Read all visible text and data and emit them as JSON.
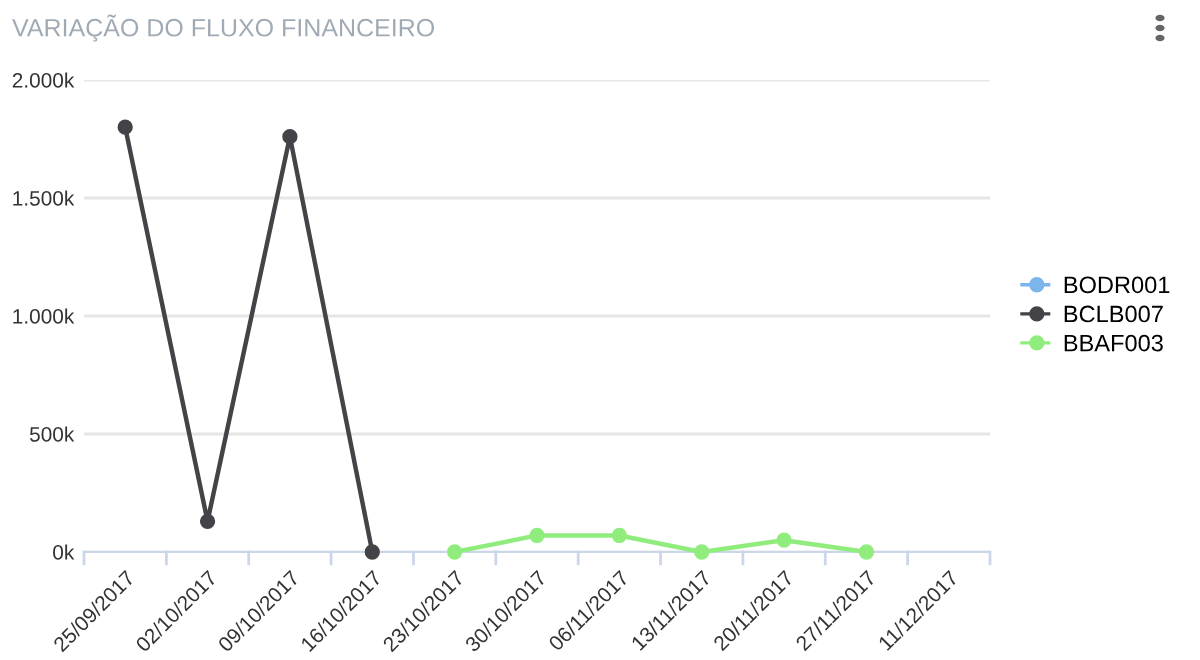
{
  "chart_data": {
    "type": "line",
    "title": "VARIAÇÃO DO FLUXO FINANCEIRO",
    "categories": [
      "25/09/2017",
      "02/10/2017",
      "09/10/2017",
      "16/10/2017",
      "23/10/2017",
      "30/10/2017",
      "06/11/2017",
      "13/11/2017",
      "20/11/2017",
      "27/11/2017",
      "11/12/2017"
    ],
    "series": [
      {
        "name": "BODR001",
        "color": "#7cb5ec",
        "values": [
          null,
          null,
          null,
          null,
          null,
          null,
          null,
          null,
          null,
          null,
          null
        ]
      },
      {
        "name": "BCLB007",
        "color": "#434348",
        "values": [
          1800,
          130,
          1760,
          0,
          null,
          null,
          null,
          null,
          null,
          null,
          null
        ]
      },
      {
        "name": "BBAF003",
        "color": "#90ed7d",
        "values": [
          null,
          null,
          null,
          null,
          0,
          70,
          70,
          0,
          50,
          0,
          null
        ]
      }
    ],
    "ylim": [
      0,
      2000
    ],
    "yticks": [
      {
        "value": 0,
        "label": "0k"
      },
      {
        "value": 500,
        "label": "500k"
      },
      {
        "value": 1000,
        "label": "1.000k"
      },
      {
        "value": 1500,
        "label": "1.500k"
      },
      {
        "value": 2000,
        "label": "2.000k"
      }
    ],
    "grid": "y",
    "legend": "right",
    "marker": "circle",
    "line_style": "solid"
  }
}
